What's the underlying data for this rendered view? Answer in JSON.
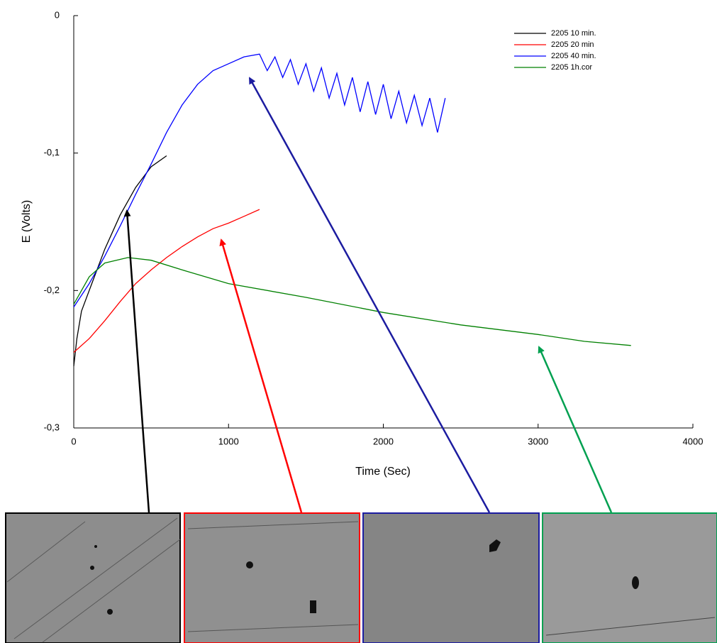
{
  "chart_data": {
    "type": "line",
    "xlabel": "Time (Sec)",
    "ylabel": "E (Volts)",
    "xlim": [
      0,
      4000
    ],
    "xticks": [
      0,
      1000,
      2000,
      3000,
      4000
    ],
    "ylim": [
      -0.3,
      0
    ],
    "yticks": [
      {
        "value": -0.3,
        "label": "-0,3"
      },
      {
        "value": -0.2,
        "label": "-0,2"
      },
      {
        "value": -0.1,
        "label": "-0,1"
      },
      0
    ],
    "legend": "upper right",
    "series": [
      {
        "name": "2205 10 min.",
        "color": "#000000",
        "x": [
          0,
          20,
          50,
          100,
          200,
          300,
          400,
          500,
          600
        ],
        "values": [
          -0.255,
          -0.235,
          -0.215,
          -0.2,
          -0.17,
          -0.145,
          -0.125,
          -0.11,
          -0.102
        ]
      },
      {
        "name": "2205 20 min",
        "color": "#ff0000",
        "x": [
          0,
          100,
          200,
          300,
          400,
          500,
          600,
          700,
          800,
          900,
          1000,
          1100,
          1200
        ],
        "values": [
          -0.245,
          -0.235,
          -0.222,
          -0.208,
          -0.195,
          -0.185,
          -0.176,
          -0.168,
          -0.161,
          -0.155,
          -0.151,
          -0.146,
          -0.141
        ]
      },
      {
        "name": "2205 40 min.",
        "color": "#0000ff",
        "x": [
          0,
          100,
          200,
          300,
          400,
          500,
          600,
          700,
          800,
          900,
          1000,
          1100,
          1200,
          1250,
          1300,
          1350,
          1400,
          1450,
          1500,
          1550,
          1600,
          1650,
          1700,
          1750,
          1800,
          1850,
          1900,
          1950,
          2000,
          2050,
          2100,
          2150,
          2200,
          2250,
          2300,
          2350,
          2400
        ],
        "values": [
          -0.212,
          -0.195,
          -0.175,
          -0.153,
          -0.13,
          -0.108,
          -0.085,
          -0.065,
          -0.05,
          -0.04,
          -0.035,
          -0.03,
          -0.028,
          -0.04,
          -0.03,
          -0.045,
          -0.032,
          -0.05,
          -0.035,
          -0.055,
          -0.038,
          -0.06,
          -0.042,
          -0.065,
          -0.045,
          -0.07,
          -0.048,
          -0.072,
          -0.05,
          -0.075,
          -0.055,
          -0.078,
          -0.058,
          -0.08,
          -0.06,
          -0.085,
          -0.06
        ]
      },
      {
        "name": "2205 1h.cor",
        "color": "#008000",
        "x": [
          0,
          100,
          200,
          350,
          500,
          700,
          1000,
          1500,
          2000,
          2500,
          3000,
          3300,
          3600
        ],
        "values": [
          -0.21,
          -0.19,
          -0.18,
          -0.176,
          -0.178,
          -0.185,
          -0.195,
          -0.205,
          -0.216,
          -0.225,
          -0.232,
          -0.237,
          -0.24
        ]
      }
    ]
  }
}
